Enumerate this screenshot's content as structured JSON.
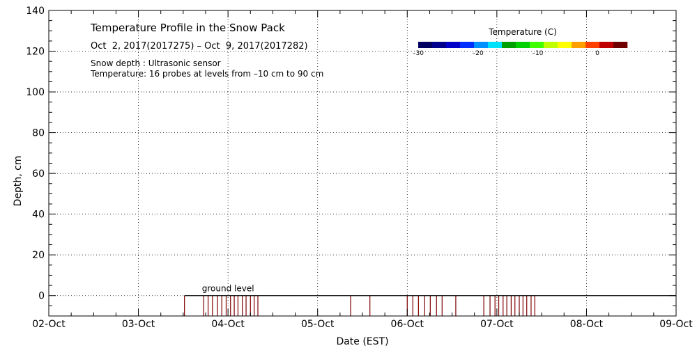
{
  "chart_data": {
    "type": "line",
    "title": "Temperature Profile in the Snow Pack",
    "subtitle": "Oct  2, 2017(2017275) – Oct  9, 2017(2017282)",
    "notes": [
      "Snow depth : Ultrasonic sensor",
      "Temperature: 16 probes at levels from –10 cm to 90 cm"
    ],
    "xlabel": "Date (EST)",
    "ylabel": "Depth, cm",
    "x_tick_labels": [
      "02-Oct",
      "03-Oct",
      "04-Oct",
      "05-Oct",
      "06-Oct",
      "07-Oct",
      "08-Oct",
      "09-Oct"
    ],
    "x_range": [
      "2017-10-02",
      "2017-10-09"
    ],
    "ylim": [
      -10,
      140
    ],
    "y_ticks": [
      0,
      20,
      40,
      60,
      80,
      100,
      120,
      140
    ],
    "grid": true,
    "ground_level": {
      "label": "ground level",
      "y": 0
    },
    "colorbar": {
      "title": "Temperature (C)",
      "ticks": [
        "–30",
        "–20",
        "–10",
        "0"
      ],
      "range": [
        -30,
        5
      ],
      "colors": [
        "#000060",
        "#00008c",
        "#0000c8",
        "#0030ff",
        "#0090ff",
        "#00e0ff",
        "#00a000",
        "#00d000",
        "#40ff00",
        "#c0ff00",
        "#ffff00",
        "#ffa000",
        "#ff4000",
        "#c00000",
        "#700000"
      ]
    },
    "series": [
      {
        "type": "snow-depth-spikes",
        "color": "#800000",
        "x": [
          "2017-10-03 12:20",
          "2017-10-03 17:30",
          "2017-10-03 18:40",
          "2017-10-03 19:50",
          "2017-10-03 21:10",
          "2017-10-03 22:20",
          "2017-10-03 23:30",
          "2017-10-04 00:40",
          "2017-10-04 01:40",
          "2017-10-04 02:40",
          "2017-10-04 03:50",
          "2017-10-04 04:50",
          "2017-10-04 06:00",
          "2017-10-04 07:00",
          "2017-10-04 08:00",
          "2017-10-05 08:50",
          "2017-10-05 14:00",
          "2017-10-06 00:00",
          "2017-10-06 01:30",
          "2017-10-06 03:00",
          "2017-10-06 04:40",
          "2017-10-06 06:10",
          "2017-10-06 07:50",
          "2017-10-06 09:20",
          "2017-10-06 13:00",
          "2017-10-06 20:30",
          "2017-10-06 22:10",
          "2017-10-06 23:30",
          "2017-10-07 00:30",
          "2017-10-07 01:40",
          "2017-10-07 02:40",
          "2017-10-07 03:50",
          "2017-10-07 04:50",
          "2017-10-07 06:00",
          "2017-10-07 07:00",
          "2017-10-07 08:00",
          "2017-10-07 09:10",
          "2017-10-07 10:10"
        ],
        "values": [
          -10,
          -10,
          -10,
          -10,
          -10,
          -10,
          -10,
          -10,
          -10,
          -10,
          -10,
          -10,
          -10,
          -10,
          -10,
          -10,
          -10,
          -10,
          -10,
          -10,
          -10,
          -10,
          -10,
          -10,
          -10,
          -10,
          -10,
          -10,
          -10,
          -10,
          -10,
          -10,
          -10,
          -10,
          -10,
          -10,
          -10,
          -10
        ]
      }
    ]
  }
}
